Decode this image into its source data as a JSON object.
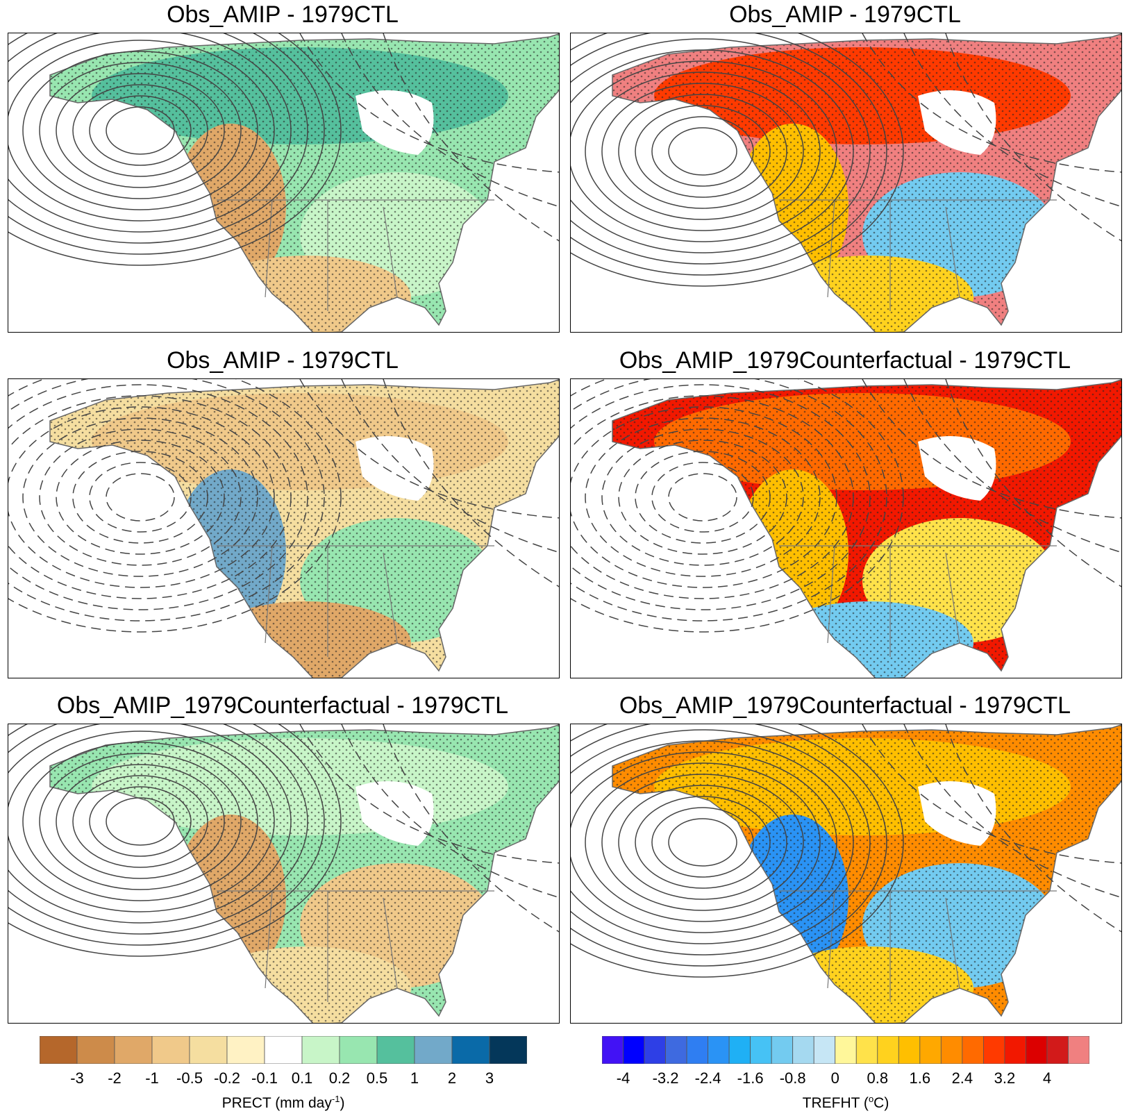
{
  "panels": [
    {
      "title": "Obs_AMIP - 1979CTL",
      "field": "precip",
      "scheme": "wet_north"
    },
    {
      "title": "Obs_AMIP - 1979CTL",
      "field": "temp",
      "scheme": "warm_north"
    },
    {
      "title": "Obs_AMIP - 1979CTL",
      "field": "precip",
      "scheme": "dry_west"
    },
    {
      "title": "Obs_AMIP_1979Counterfactual - 1979CTL",
      "field": "temp",
      "scheme": "hot_north"
    },
    {
      "title": "Obs_AMIP_1979Counterfactual - 1979CTL",
      "field": "precip",
      "scheme": "dry_coast"
    },
    {
      "title": "Obs_AMIP_1979Counterfactual - 1979CTL",
      "field": "temp",
      "scheme": "cold_west"
    }
  ],
  "precip_colorbar": {
    "label": "PRECT (mm day",
    "label_sup": "-1",
    "label_end": ")",
    "ticks": [
      "-3",
      "-2",
      "-1",
      "-0.5",
      "-0.2",
      "-0.1",
      "0.1",
      "0.2",
      "0.5",
      "1",
      "2",
      "3"
    ],
    "colors": [
      "#b5672b",
      "#cd8b4a",
      "#e0a868",
      "#f0c98a",
      "#f5dea0",
      "#fff2c4",
      "#ffffff",
      "#c8f5c8",
      "#98e6b0",
      "#55c09d",
      "#72a9c9",
      "#0a6aa8",
      "#04375a"
    ]
  },
  "temp_colorbar": {
    "label": "TREFHT (",
    "label_sup": "o",
    "label_end": "C)",
    "ticks": [
      "-4",
      "-3.2",
      "-2.4",
      "-1.6",
      "-0.8",
      "0",
      "0.8",
      "1.6",
      "2.4",
      "3.2",
      "4"
    ],
    "colors": [
      "#4212f5",
      "#0000ff",
      "#2e3fe6",
      "#3e6ae0",
      "#2f7ef2",
      "#2a93f5",
      "#1fb0f5",
      "#46c2f5",
      "#73cbf0",
      "#a5d9f0",
      "#c6e6f5",
      "#fff79a",
      "#ffe24a",
      "#ffd21e",
      "#ffbf00",
      "#ffa800",
      "#ff8c00",
      "#ff6a00",
      "#ff3a00",
      "#f21800",
      "#dc0000",
      "#d21a1a",
      "#f08080"
    ]
  }
}
